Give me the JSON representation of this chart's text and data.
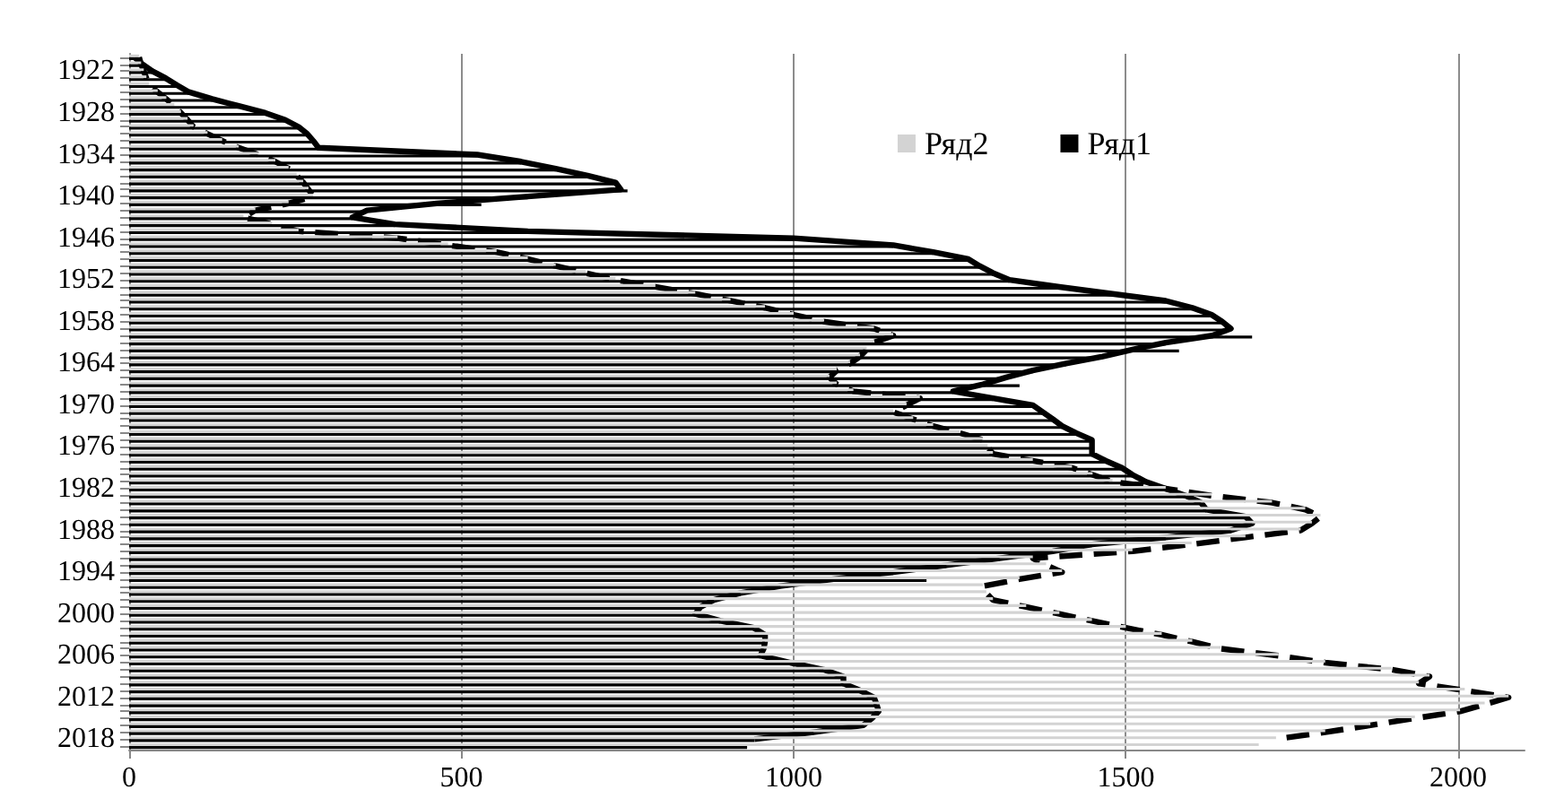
{
  "chart_data": {
    "type": "bar",
    "orientation": "horizontal",
    "categories": [
      null,
      null,
      "1922",
      null,
      null,
      null,
      null,
      null,
      "1928",
      null,
      null,
      null,
      null,
      null,
      "1934",
      null,
      null,
      null,
      null,
      null,
      "1940",
      null,
      null,
      null,
      null,
      null,
      "1946",
      null,
      null,
      null,
      null,
      null,
      "1952",
      null,
      null,
      null,
      null,
      null,
      "1958",
      null,
      null,
      null,
      null,
      null,
      "1964",
      null,
      null,
      null,
      null,
      null,
      "1970",
      null,
      null,
      null,
      null,
      null,
      "1976",
      null,
      null,
      null,
      null,
      null,
      "1982",
      null,
      null,
      null,
      null,
      null,
      "1988",
      null,
      null,
      null,
      null,
      null,
      "1994",
      null,
      null,
      null,
      null,
      null,
      "2000",
      null,
      null,
      null,
      null,
      null,
      "2006",
      null,
      null,
      null,
      null,
      null,
      "2012",
      null,
      null,
      null,
      null,
      null,
      "2018",
      null
    ],
    "series": [
      {
        "name": "Ряд2",
        "color": "#d3d3d3",
        "values": [
          15,
          18,
          22,
          26,
          30,
          43,
          56,
          68,
          78,
          88,
          97,
          118,
          140,
          165,
          195,
          220,
          240,
          252,
          262,
          270,
          277,
          240,
          190,
          172,
          215,
          255,
          404,
          480,
          553,
          600,
          642,
          687,
          732,
          792,
          852,
          905,
          957,
          1000,
          1046,
          1121,
          1150,
          1121,
          1110,
          1100,
          1085,
          1065,
          1054,
          1065,
          1090,
          1190,
          1170,
          1150,
          1180,
          1210,
          1250,
          1285,
          1292,
          1300,
          1360,
          1419,
          1450,
          1480,
          1560,
          1629,
          1720,
          1770,
          1793,
          1780,
          1763,
          1680,
          1599,
          1510,
          1360,
          1380,
          1404,
          1340,
          1285,
          1290,
          1300,
          1350,
          1400,
          1449,
          1500,
          1554,
          1600,
          1643,
          1730,
          1800,
          1900,
          1957,
          1941,
          2010,
          2076,
          2040,
          2003,
          1935,
          1868,
          1800,
          1726,
          1700
        ]
      },
      {
        "name": "Ряд1",
        "color": "#000000",
        "values": [
          8,
          20,
          35,
          55,
          72,
          90,
          125,
          165,
          205,
          235,
          255,
          268,
          277,
          285,
          524,
          590,
          642,
          690,
          732,
          750,
          600,
          530,
          358,
          336,
          400,
          600,
          1000,
          1150,
          1210,
          1263,
          1280,
          1300,
          1325,
          1400,
          1480,
          1560,
          1600,
          1629,
          1645,
          1658,
          1690,
          1560,
          1580,
          1465,
          1410,
          1360,
          1320,
          1340,
          1240,
          1300,
          1360,
          1375,
          1390,
          1404,
          1425,
          1449,
          1449,
          1449,
          1470,
          1494,
          1510,
          1530,
          1560,
          1590,
          1613,
          1621,
          1680,
          1690,
          1658,
          1560,
          1449,
          1390,
          1310,
          1230,
          1150,
          1200,
          980,
          920,
          880,
          860,
          852,
          890,
          940,
          957,
          957,
          955,
          950,
          995,
          1045,
          1075,
          1075,
          1100,
          1121,
          1125,
          1128,
          1118,
          1105,
          1030,
          941,
          930
        ]
      },
      {
        "type": "line",
        "line_style": "solid",
        "color": "#000000",
        "values": [
          8,
          20,
          35,
          55,
          72,
          90,
          125,
          165,
          205,
          235,
          255,
          268,
          277,
          285,
          524,
          590,
          642,
          690,
          732,
          740,
          600,
          463,
          358,
          336,
          400,
          600,
          1000,
          1150,
          1210,
          1263,
          1280,
          1300,
          1325,
          1400,
          1480,
          1560,
          1600,
          1629,
          1645,
          1658,
          1630,
          1560,
          1510,
          1465,
          1410,
          1360,
          1320,
          1285,
          1240,
          1300,
          1360,
          1375,
          1390,
          1404,
          1425,
          1449,
          1449,
          1449,
          1470,
          1494,
          1510,
          1530,
          1560,
          1590,
          1613,
          1621,
          1680,
          1690,
          1658,
          1560,
          1449,
          1390,
          1310,
          1230,
          1150,
          1060,
          980,
          920,
          880,
          860,
          852,
          890,
          940,
          957,
          957,
          955,
          950,
          995,
          1045,
          1075,
          1075,
          1100,
          1121,
          1125,
          1128,
          1118,
          1105,
          1030,
          941,
          null
        ]
      },
      {
        "type": "line",
        "line_style": "dashed",
        "color": "#000000",
        "values": [
          15,
          18,
          22,
          26,
          30,
          43,
          56,
          68,
          78,
          88,
          97,
          118,
          140,
          165,
          195,
          220,
          240,
          252,
          262,
          270,
          277,
          240,
          190,
          172,
          215,
          255,
          404,
          480,
          553,
          600,
          642,
          687,
          732,
          792,
          852,
          905,
          957,
          1000,
          1046,
          1121,
          1150,
          1121,
          1110,
          1100,
          1085,
          1065,
          1054,
          1065,
          1090,
          1190,
          1170,
          1150,
          1180,
          1210,
          1250,
          1285,
          1292,
          1300,
          1360,
          1419,
          1450,
          1480,
          1560,
          1629,
          1720,
          1770,
          1793,
          1780,
          1763,
          1680,
          1599,
          1510,
          1360,
          1380,
          1404,
          1340,
          1285,
          1290,
          1300,
          1350,
          1400,
          1449,
          1500,
          1554,
          1600,
          1643,
          1730,
          1800,
          1900,
          1957,
          1941,
          2010,
          2076,
          2040,
          2003,
          1935,
          1868,
          1800,
          1726,
          null
        ]
      }
    ],
    "xlim": [
      0,
      2100
    ],
    "xticks": [
      0,
      500,
      1000,
      1500,
      2000
    ],
    "grid": "x",
    "legend": "top right",
    "marker": "none"
  }
}
